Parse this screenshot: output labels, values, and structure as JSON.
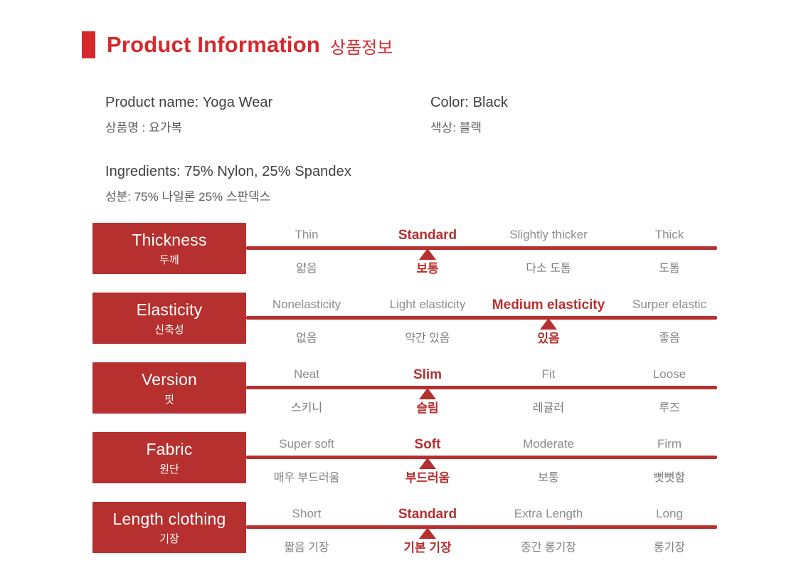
{
  "header": {
    "title_en": "Product Information",
    "title_ko": "상품정보",
    "accent_color": "#d6292b"
  },
  "product": {
    "name_en": "Product name: Yoga Wear",
    "name_ko": "상품명 : 요가복",
    "color_en": "Color: Black",
    "color_ko": "색상: 블랙",
    "ingredients_en": "Ingredients: 75% Nylon, 25% Spandex",
    "ingredients_ko": "성분: 75% 나일론 25% 스판덱스"
  },
  "attributes": {
    "row_color": "#b5302e",
    "marker": "triangle-up",
    "rows": [
      {
        "label_en": "Thickness",
        "label_ko": "두께",
        "selected_index": 1,
        "options": [
          {
            "en": "Thin",
            "ko": "얇음"
          },
          {
            "en": "Standard",
            "ko": "보통"
          },
          {
            "en": "Slightly thicker",
            "ko": "다소 도톰"
          },
          {
            "en": "Thick",
            "ko": "도톰"
          }
        ]
      },
      {
        "label_en": "Elasticity",
        "label_ko": "신축성",
        "selected_index": 2,
        "options": [
          {
            "en": "Nonelasticity",
            "ko": "없음"
          },
          {
            "en": "Light elasticity",
            "ko": "약간 있음"
          },
          {
            "en": "Medium elasticity",
            "ko": "있음"
          },
          {
            "en": "Surper elastic",
            "ko": "좋음"
          }
        ]
      },
      {
        "label_en": "Version",
        "label_ko": "핏",
        "selected_index": 1,
        "options": [
          {
            "en": "Neat",
            "ko": "스키니"
          },
          {
            "en": "Slim",
            "ko": "슬림"
          },
          {
            "en": "Fit",
            "ko": "레귤러"
          },
          {
            "en": "Loose",
            "ko": "루즈"
          }
        ]
      },
      {
        "label_en": "Fabric",
        "label_ko": "원단",
        "selected_index": 1,
        "options": [
          {
            "en": "Super soft",
            "ko": "매우 부드러움"
          },
          {
            "en": "Soft",
            "ko": "부드러움"
          },
          {
            "en": "Moderate",
            "ko": "보통"
          },
          {
            "en": "Firm",
            "ko": "뻣뻣함"
          }
        ]
      },
      {
        "label_en": "Length clothing",
        "label_ko": "기장",
        "selected_index": 1,
        "options": [
          {
            "en": "Short",
            "ko": "짧음 기장"
          },
          {
            "en": "Standard",
            "ko": "기본 기장"
          },
          {
            "en": "Extra Length",
            "ko": "중간 롱기장"
          },
          {
            "en": "Long",
            "ko": "롱기장"
          }
        ]
      }
    ]
  }
}
